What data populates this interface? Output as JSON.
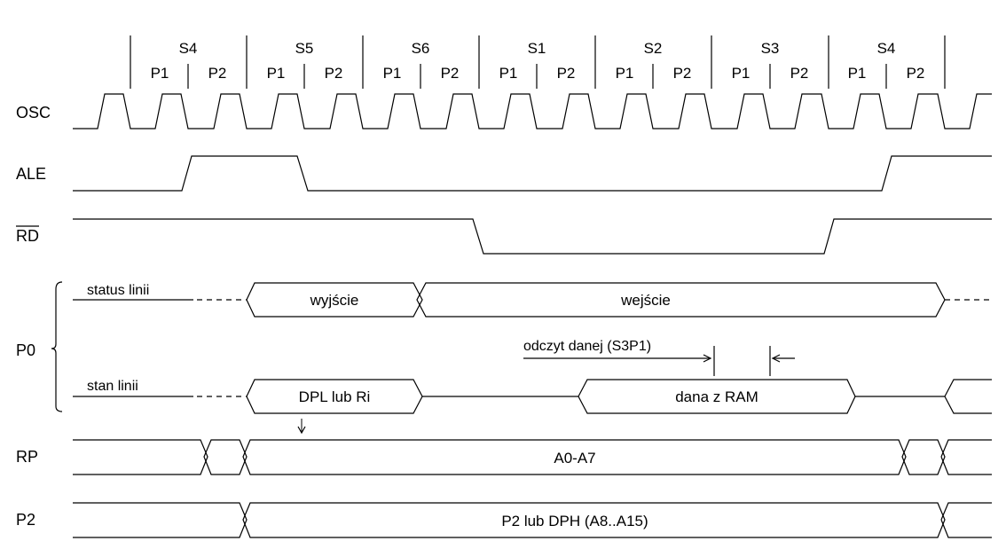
{
  "states": [
    {
      "name": "S4",
      "phases": [
        "P1",
        "P2"
      ]
    },
    {
      "name": "S5",
      "phases": [
        "P1",
        "P2"
      ]
    },
    {
      "name": "S6",
      "phases": [
        "P1",
        "P2"
      ]
    },
    {
      "name": "S1",
      "phases": [
        "P1",
        "P2"
      ]
    },
    {
      "name": "S2",
      "phases": [
        "P1",
        "P2"
      ]
    },
    {
      "name": "S3",
      "phases": [
        "P1",
        "P2"
      ]
    },
    {
      "name": "S4",
      "phases": [
        "P1",
        "P2"
      ]
    }
  ],
  "signals": {
    "osc": "OSC",
    "ale": "ALE",
    "rd": "RD",
    "p0": "P0",
    "rp": "RP",
    "p2": "P2"
  },
  "p0": {
    "status_label": "status linii",
    "stan_label": "stan linii",
    "wyjscie": "wyjście",
    "wejscie": "wejście",
    "dpl": "DPL lub Ri",
    "dana": "dana z RAM",
    "odczyt": "odczyt danej (S3P1)"
  },
  "rp_bus": "A0-A7",
  "p2_bus": "P2 lub DPH (A8..A15)"
}
